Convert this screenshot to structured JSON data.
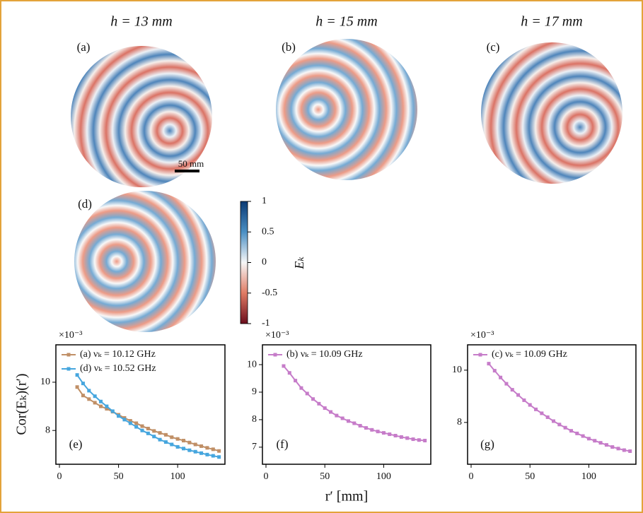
{
  "chart_data": [
    {
      "type": "heatmap",
      "title": "h = 13 mm",
      "label": "(a)",
      "scalebar": "50 mm"
    },
    {
      "type": "heatmap",
      "title": "h = 15 mm",
      "label": "(b)"
    },
    {
      "type": "heatmap",
      "title": "h = 17 mm",
      "label": "(c)"
    },
    {
      "type": "heatmap",
      "label": "(d)",
      "colorbar": {
        "label": "Eₖ",
        "lim": [
          -1,
          1
        ],
        "ticks": [
          1,
          0.5,
          0,
          -0.5,
          -1
        ]
      }
    },
    {
      "type": "line",
      "label": "(e)",
      "multiplier": "×10⁻³",
      "ylabel": "Cor(Eₖ)(r′)",
      "x": [
        15,
        20,
        25,
        30,
        35,
        40,
        45,
        50,
        55,
        60,
        65,
        70,
        75,
        80,
        85,
        90,
        95,
        100,
        105,
        110,
        115,
        120,
        125,
        130,
        135
      ],
      "xlim": [
        -3,
        140
      ],
      "xticks": [
        0,
        50,
        100
      ],
      "ylim": [
        6.6,
        11.55
      ],
      "yticks": [
        8,
        10
      ],
      "series": [
        {
          "name": "(a) νₖ = 10.12 GHz",
          "color": "#c08f66",
          "values": [
            9.8,
            9.45,
            9.3,
            9.15,
            9.0,
            8.9,
            8.78,
            8.65,
            8.52,
            8.4,
            8.3,
            8.18,
            8.08,
            7.98,
            7.9,
            7.82,
            7.72,
            7.65,
            7.58,
            7.5,
            7.42,
            7.35,
            7.28,
            7.22,
            7.15
          ]
        },
        {
          "name": "(d) νₖ = 10.52 GHz",
          "color": "#46a6de",
          "values": [
            10.3,
            9.95,
            9.65,
            9.42,
            9.2,
            9.0,
            8.8,
            8.6,
            8.45,
            8.3,
            8.15,
            8.0,
            7.88,
            7.75,
            7.62,
            7.52,
            7.42,
            7.32,
            7.25,
            7.18,
            7.12,
            7.06,
            7.0,
            6.95,
            6.9
          ]
        }
      ]
    },
    {
      "type": "line",
      "label": "(f)",
      "multiplier": "×10⁻³",
      "xlabel": "r′ [mm]",
      "x": [
        15,
        20,
        25,
        30,
        35,
        40,
        45,
        50,
        55,
        60,
        65,
        70,
        75,
        80,
        85,
        90,
        95,
        100,
        105,
        110,
        115,
        120,
        125,
        130,
        135
      ],
      "xlim": [
        -3,
        140
      ],
      "xticks": [
        0,
        50,
        100
      ],
      "ylim": [
        6.38,
        10.72
      ],
      "yticks": [
        7,
        8,
        9,
        10
      ],
      "series": [
        {
          "name": "(b) νₖ = 10.09 GHz",
          "color": "#c67cc9",
          "values": [
            9.95,
            9.7,
            9.42,
            9.15,
            8.95,
            8.75,
            8.58,
            8.42,
            8.28,
            8.15,
            8.05,
            7.95,
            7.87,
            7.78,
            7.7,
            7.63,
            7.57,
            7.52,
            7.47,
            7.42,
            7.37,
            7.33,
            7.29,
            7.26,
            7.24
          ]
        }
      ]
    },
    {
      "type": "line",
      "label": "(g)",
      "multiplier": "×10⁻³",
      "x": [
        15,
        20,
        25,
        30,
        35,
        40,
        45,
        50,
        55,
        60,
        65,
        70,
        75,
        80,
        85,
        90,
        95,
        100,
        105,
        110,
        115,
        120,
        125,
        130,
        135
      ],
      "xlim": [
        -3,
        140
      ],
      "xticks": [
        0,
        50,
        100
      ],
      "ylim": [
        6.4,
        10.97
      ],
      "yticks": [
        8,
        10
      ],
      "series": [
        {
          "name": "(c) νₖ = 10.09 GHz",
          "color": "#c67cc9",
          "values": [
            10.25,
            9.98,
            9.72,
            9.48,
            9.25,
            9.05,
            8.85,
            8.67,
            8.5,
            8.35,
            8.2,
            8.05,
            7.92,
            7.8,
            7.68,
            7.58,
            7.48,
            7.38,
            7.3,
            7.22,
            7.14,
            7.06,
            7.0,
            6.94,
            6.9
          ]
        }
      ]
    }
  ]
}
